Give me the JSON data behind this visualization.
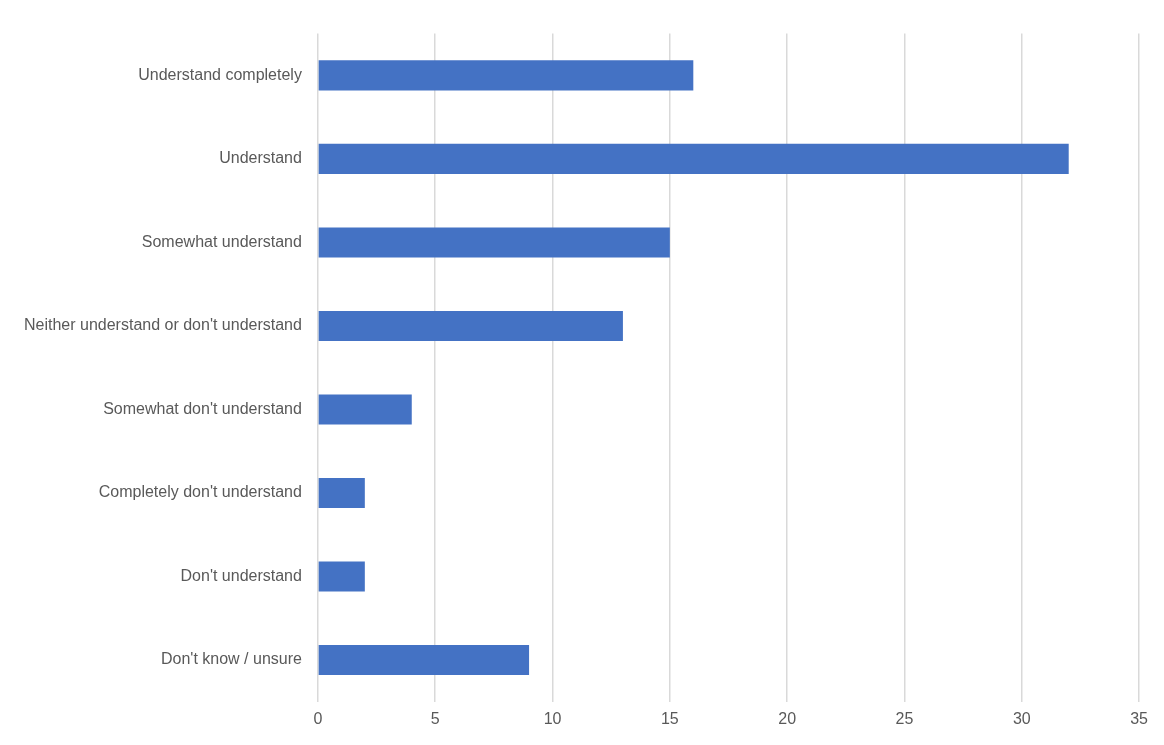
{
  "chart_data": {
    "type": "bar",
    "orientation": "horizontal",
    "categories": [
      "Understand completely",
      "Understand",
      "Somewhat understand",
      "Neither understand or don't understand",
      "Somewhat don't understand",
      "Completely don't understand",
      "Don't understand",
      "Don't know / unsure"
    ],
    "values": [
      16,
      32,
      15,
      13,
      4,
      2,
      2,
      9
    ],
    "color": "#4472c4",
    "xlim": [
      0,
      35
    ],
    "xticks": [
      0,
      5,
      10,
      15,
      20,
      25,
      30,
      35
    ],
    "grid": "x",
    "legend": false
  }
}
